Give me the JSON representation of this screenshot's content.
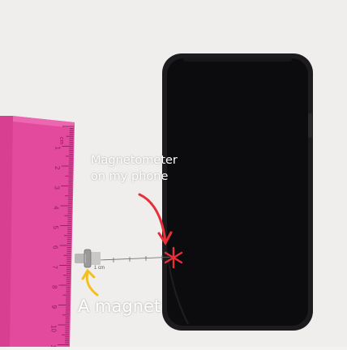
{
  "annotations": {
    "magnetometer_line1": "Magnetometer",
    "magnetometer_line2": "on my phone",
    "magnet": "A magnet",
    "ruler_numbers": [
      "1",
      "2",
      "3",
      "4",
      "5",
      "6",
      "7",
      "8",
      "9",
      "10",
      "11"
    ],
    "ruler_unit": "cm",
    "magnet_tag": "1 cm"
  },
  "colors": {
    "background": "#f4f2f0",
    "phone_body": "#0c0c0e",
    "phone_bumper": "#1c1c1f",
    "ruler": "#e8449a",
    "red_arrow": "#e8303a",
    "yellow_arrow": "#f2c020",
    "text": "#ffffff"
  }
}
